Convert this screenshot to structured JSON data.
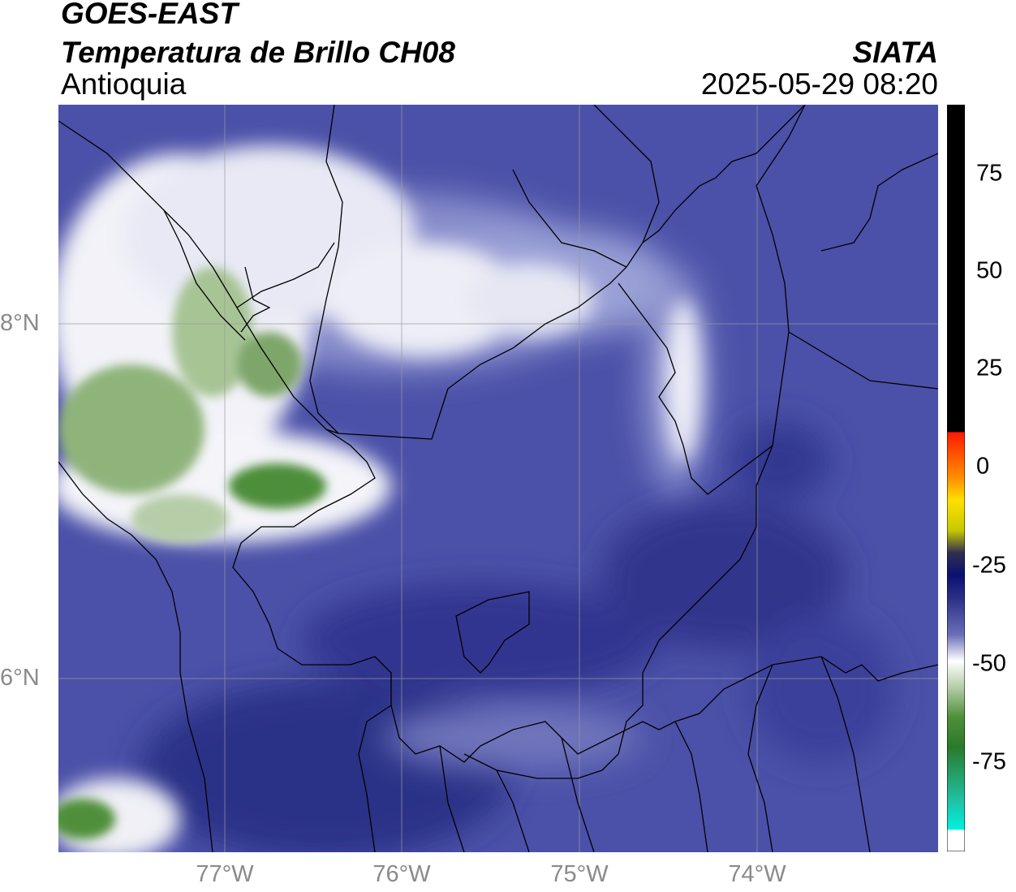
{
  "header": {
    "satellite": "GOES-EAST",
    "product": "Temperatura de Brillo CH08",
    "region": "Antioquia",
    "agency": "SIATA",
    "datetime": "2025-05-29 08:20"
  },
  "axes": {
    "y_ticks": [
      "8°N",
      "6°N"
    ],
    "x_ticks": [
      "77°W",
      "76°W",
      "75°W",
      "74°W"
    ]
  },
  "colorbar": {
    "ticks": [
      "75",
      "50",
      "25",
      "0",
      "-25",
      "-50",
      "-75"
    ]
  },
  "colors": {
    "background_dark": "#2a2f86",
    "background_mid": "#4a50a6",
    "background_light": "#6a6fb8",
    "cloud_white": "#f2f2f8",
    "cloud_green": "#4f8f3a",
    "gridline": "#9a9a9a"
  }
}
